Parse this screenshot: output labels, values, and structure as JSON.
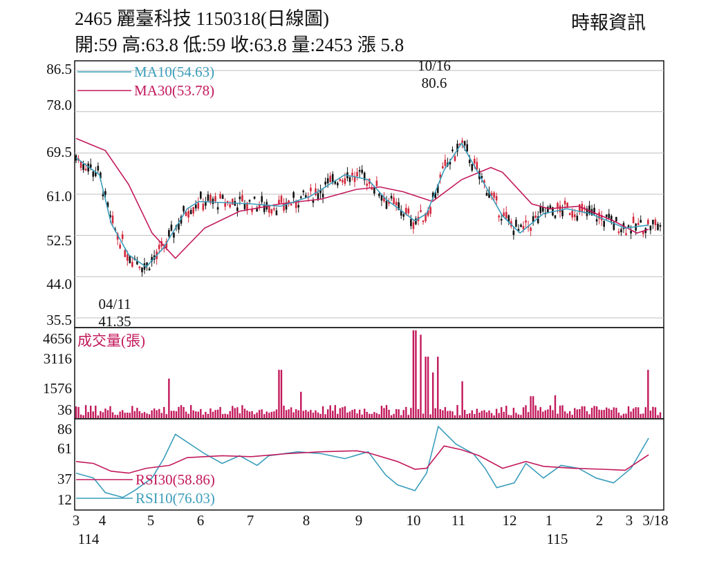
{
  "header": {
    "title": "2465  麗臺科技 1150318(日線圖)",
    "source": "時報資訊",
    "ohlc": "開:59 高:63.8 低:59 收:63.8 量:2453 漲 5.8"
  },
  "chart_data": [
    {
      "type": "candlestick",
      "panel": "price",
      "y_ticks": [
        "86.5",
        "78.0",
        "69.5",
        "61.0",
        "52.5",
        "44.0",
        "35.5"
      ],
      "ylim": [
        35.5,
        86.5
      ],
      "grid": true,
      "legend": [
        {
          "label": "MA10(54.63)",
          "color": "#3a9dbb"
        },
        {
          "label": "MA30(53.78)",
          "color": "#c2185b"
        }
      ],
      "annotations": [
        {
          "date": "10/16",
          "value": "80.6",
          "kind": "high"
        },
        {
          "date": "04/11",
          "value": "41.35",
          "kind": "low"
        }
      ],
      "last": {
        "open": 59,
        "high": 63.8,
        "low": 59,
        "close": 63.8
      },
      "ma10_path": [
        [
          0,
          68.5
        ],
        [
          0.04,
          65
        ],
        [
          0.06,
          55
        ],
        [
          0.09,
          48.5
        ],
        [
          0.12,
          46
        ],
        [
          0.15,
          50
        ],
        [
          0.19,
          58
        ],
        [
          0.21,
          59.5
        ],
        [
          0.3,
          59
        ],
        [
          0.35,
          58.5
        ],
        [
          0.4,
          60.5
        ],
        [
          0.46,
          65
        ],
        [
          0.5,
          64
        ],
        [
          0.53,
          60
        ],
        [
          0.58,
          55.5
        ],
        [
          0.6,
          57
        ],
        [
          0.63,
          66
        ],
        [
          0.66,
          71.5
        ],
        [
          0.69,
          65
        ],
        [
          0.73,
          56.5
        ],
        [
          0.76,
          53
        ],
        [
          0.8,
          57
        ],
        [
          0.84,
          58
        ],
        [
          0.88,
          57
        ],
        [
          0.94,
          54
        ],
        [
          0.98,
          54.63
        ]
      ],
      "ma30_path": [
        [
          0,
          72.5
        ],
        [
          0.05,
          70
        ],
        [
          0.09,
          63
        ],
        [
          0.13,
          53
        ],
        [
          0.17,
          47.8
        ],
        [
          0.22,
          54
        ],
        [
          0.28,
          57.5
        ],
        [
          0.35,
          59
        ],
        [
          0.42,
          60
        ],
        [
          0.48,
          62
        ],
        [
          0.52,
          62.5
        ],
        [
          0.56,
          61.5
        ],
        [
          0.61,
          59.5
        ],
        [
          0.66,
          64
        ],
        [
          0.71,
          66.5
        ],
        [
          0.73,
          65.5
        ],
        [
          0.78,
          59
        ],
        [
          0.81,
          58
        ],
        [
          0.86,
          58.5
        ],
        [
          0.92,
          55.5
        ],
        [
          0.96,
          53
        ],
        [
          0.98,
          53.78
        ]
      ]
    },
    {
      "type": "bar",
      "panel": "volume",
      "label": "成交量(張)",
      "y_ticks": [
        "4656",
        "3116",
        "1576",
        "36"
      ],
      "ylim": [
        36,
        4656
      ],
      "last_volume": 2453
    },
    {
      "type": "line",
      "panel": "rsi",
      "y_ticks": [
        "86",
        "61",
        "37",
        "12"
      ],
      "ylim": [
        12,
        86
      ],
      "legend": [
        {
          "label": "RSI30(58.86)",
          "color": "#c2185b"
        },
        {
          "label": "RSI10(76.03)",
          "color": "#3a9dbb"
        }
      ],
      "rsi30_path": [
        [
          0,
          52
        ],
        [
          0.03,
          50
        ],
        [
          0.06,
          42
        ],
        [
          0.09,
          40
        ],
        [
          0.12,
          45
        ],
        [
          0.16,
          48
        ],
        [
          0.19,
          56
        ],
        [
          0.25,
          58
        ],
        [
          0.3,
          57
        ],
        [
          0.36,
          60
        ],
        [
          0.42,
          62
        ],
        [
          0.48,
          63
        ],
        [
          0.5,
          61
        ],
        [
          0.55,
          52
        ],
        [
          0.58,
          44
        ],
        [
          0.6,
          45
        ],
        [
          0.63,
          68
        ],
        [
          0.66,
          64
        ],
        [
          0.69,
          58
        ],
        [
          0.73,
          45
        ],
        [
          0.77,
          52
        ],
        [
          0.8,
          47
        ],
        [
          0.85,
          45
        ],
        [
          0.9,
          44
        ],
        [
          0.94,
          43
        ],
        [
          0.98,
          58.86
        ]
      ],
      "rsi10_path": [
        [
          0,
          40
        ],
        [
          0.03,
          35
        ],
        [
          0.05,
          20
        ],
        [
          0.08,
          15
        ],
        [
          0.1,
          22
        ],
        [
          0.13,
          35
        ],
        [
          0.15,
          55
        ],
        [
          0.17,
          80
        ],
        [
          0.19,
          72
        ],
        [
          0.22,
          60
        ],
        [
          0.25,
          50
        ],
        [
          0.28,
          58
        ],
        [
          0.31,
          48
        ],
        [
          0.33,
          58
        ],
        [
          0.38,
          62
        ],
        [
          0.42,
          60
        ],
        [
          0.46,
          55
        ],
        [
          0.5,
          62
        ],
        [
          0.53,
          38
        ],
        [
          0.55,
          28
        ],
        [
          0.58,
          22
        ],
        [
          0.6,
          40
        ],
        [
          0.62,
          88
        ],
        [
          0.65,
          70
        ],
        [
          0.68,
          60
        ],
        [
          0.7,
          45
        ],
        [
          0.72,
          25
        ],
        [
          0.75,
          30
        ],
        [
          0.77,
          50
        ],
        [
          0.8,
          35
        ],
        [
          0.83,
          48
        ],
        [
          0.86,
          45
        ],
        [
          0.89,
          35
        ],
        [
          0.92,
          30
        ],
        [
          0.95,
          45
        ],
        [
          0.98,
          76.03
        ]
      ]
    }
  ],
  "x_axis": {
    "months": [
      "3",
      "4",
      "5",
      "6",
      "7",
      "8",
      "9",
      "10",
      "11",
      "12",
      "1",
      "2",
      "3",
      "3/18"
    ],
    "years": [
      "114",
      "115"
    ]
  }
}
